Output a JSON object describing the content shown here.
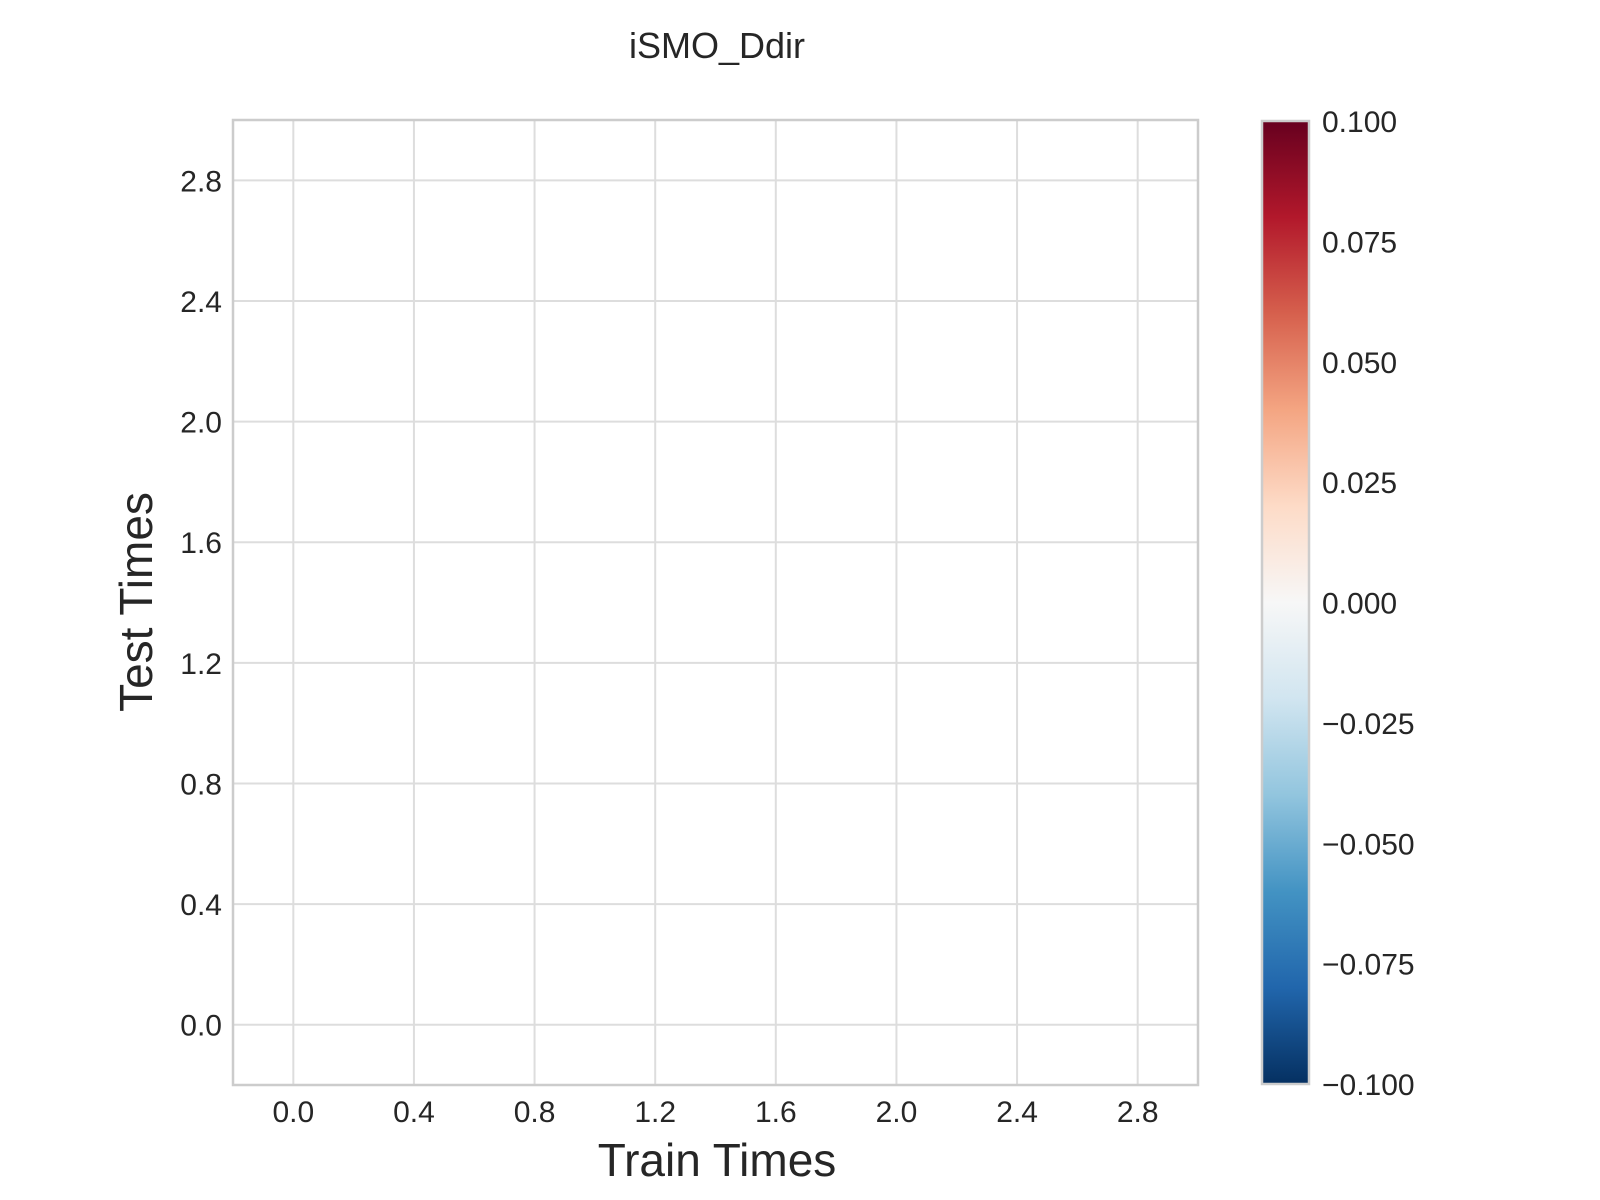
{
  "chart_data": {
    "type": "heatmap",
    "title": "iSMO_Ddir",
    "xlabel": "Train Times",
    "ylabel": "Test Times",
    "xlim": [
      -0.2,
      3.0
    ],
    "ylim": [
      -0.2,
      3.0
    ],
    "xticks": [
      0.0,
      0.4,
      0.8,
      1.2,
      1.6,
      2.0,
      2.4,
      2.8
    ],
    "yticks": [
      0.0,
      0.4,
      0.8,
      1.2,
      1.6,
      2.0,
      2.4,
      2.8
    ],
    "xtick_labels": [
      "0.0",
      "0.4",
      "0.8",
      "1.2",
      "1.6",
      "2.0",
      "2.4",
      "2.8"
    ],
    "ytick_labels": [
      "0.0",
      "0.4",
      "0.8",
      "1.2",
      "1.6",
      "2.0",
      "2.4",
      "2.8"
    ],
    "values": [],
    "grid": true,
    "colorbar": {
      "colormap": "RdBu_r",
      "vmin": -0.1,
      "vmax": 0.1,
      "ticks": [
        0.1,
        0.075,
        0.05,
        0.025,
        0.0,
        -0.025,
        -0.05,
        -0.075,
        -0.1
      ],
      "tick_labels": [
        "0.100",
        "0.075",
        "0.050",
        "0.025",
        "0.000",
        "−0.025",
        "−0.050",
        "−0.075",
        "−0.100"
      ],
      "colors": [
        "#67001f",
        "#b2182b",
        "#d6604d",
        "#f4a582",
        "#fddbc7",
        "#f7f7f7",
        "#d1e5f0",
        "#92c5de",
        "#4393c3",
        "#2166ac",
        "#053061"
      ]
    }
  }
}
